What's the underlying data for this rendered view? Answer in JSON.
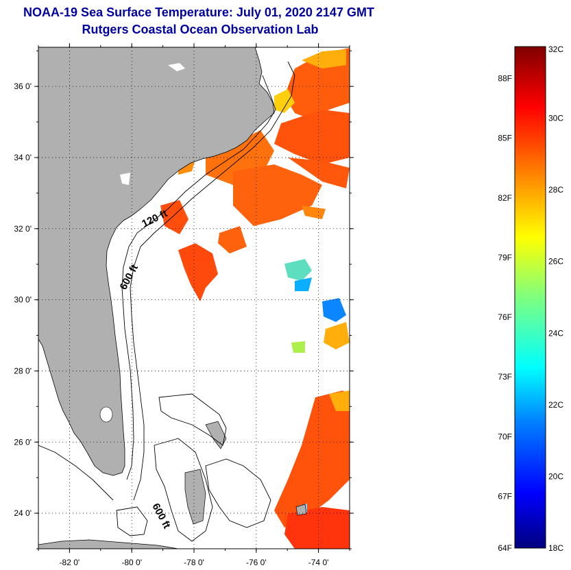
{
  "title": {
    "line1": "NOAA-19 Sea Surface Temperature:  July 01, 2020 2147 GMT",
    "line2": "Rutgers Coastal Ocean Observation Lab"
  },
  "map": {
    "lon_range": [
      -83,
      -73
    ],
    "lat_range": [
      23,
      37.1
    ],
    "lat_labels": [
      "36 0'",
      "34 0'",
      "32 0'",
      "30 0'",
      "28 0'",
      "26 0'",
      "24 0'"
    ],
    "lat_values": [
      36,
      34,
      32,
      30,
      28,
      26,
      24
    ],
    "lon_labels": [
      "-82 0'",
      "-80 0'",
      "-78 0'",
      "-76 0'",
      "-74 0'"
    ],
    "lon_values": [
      -82,
      -80,
      -78,
      -76,
      -74
    ],
    "grid": true,
    "land_color": "#b0b0b0",
    "contour_labels": [
      "120 ft",
      "600 ft",
      "600 ft"
    ]
  },
  "colorbar": {
    "celsius_labels": [
      "32C",
      "30C",
      "28C",
      "26C",
      "24C",
      "22C",
      "20C",
      "18C"
    ],
    "celsius_values": [
      32,
      30,
      28,
      26,
      24,
      22,
      20,
      18
    ],
    "fahrenheit_labels": [
      "88F",
      "85F",
      "82F",
      "79F",
      "76F",
      "73F",
      "70F",
      "67F",
      "64F"
    ],
    "fahrenheit_values": [
      88,
      85,
      82,
      79,
      76,
      73,
      70,
      67,
      64
    ],
    "range_c": [
      18,
      32
    ],
    "colors": [
      "#00007f",
      "#0000ff",
      "#007fff",
      "#00ffff",
      "#7fff7f",
      "#ffff00",
      "#ff7f00",
      "#ff0000",
      "#7f0000"
    ]
  }
}
